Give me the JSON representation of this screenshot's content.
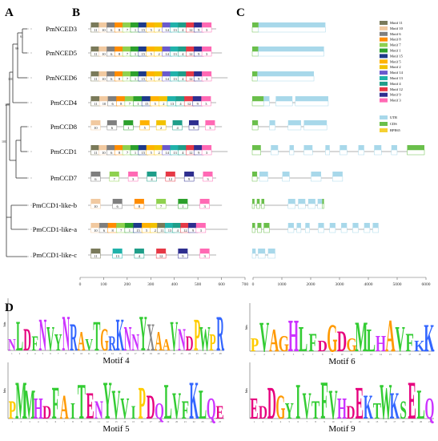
{
  "panels": {
    "A": "A",
    "B": "B",
    "C": "C",
    "D": "D"
  },
  "genes": [
    {
      "name": "PmNCED3",
      "support": "",
      "motifs": [
        11,
        10,
        6,
        8,
        7,
        1,
        15,
        5,
        2,
        14,
        13,
        4,
        12,
        9,
        3
      ],
      "gene_len": 2550,
      "gene": [
        [
          0,
          220,
          "cds"
        ],
        [
          220,
          2550,
          "utr"
        ]
      ]
    },
    {
      "name": "PmNCED5",
      "support": "61",
      "motifs": [
        11,
        10,
        6,
        8,
        7,
        1,
        15,
        5,
        2,
        14,
        13,
        4,
        12,
        9,
        3
      ],
      "gene_len": 2500,
      "gene": [
        [
          0,
          210,
          "cds"
        ],
        [
          210,
          2500,
          "utr"
        ]
      ]
    },
    {
      "name": "PmNCED6",
      "support": "99",
      "motifs": [
        11,
        10,
        6,
        8,
        7,
        1,
        15,
        5,
        2,
        14,
        13,
        4,
        12,
        9,
        3
      ],
      "gene_len": 2150,
      "gene": [
        [
          0,
          180,
          "cds"
        ],
        [
          180,
          2150,
          "utr"
        ]
      ]
    },
    {
      "name": "PmCCD4",
      "support": "100",
      "motifs": [
        11,
        10,
        6,
        8,
        7,
        1,
        15,
        5,
        2,
        13,
        4,
        12,
        9,
        3
      ],
      "gene_len": 2650,
      "gene": [
        [
          0,
          400,
          "cds"
        ],
        [
          400,
          600,
          "utr"
        ],
        [
          820,
          1400,
          "utr"
        ],
        [
          1500,
          2650,
          "utr"
        ]
      ]
    },
    {
      "name": "PmCCD8",
      "support": "100",
      "motifs": [
        10,
        6,
        1,
        5,
        2,
        4,
        9,
        3
      ],
      "gene_len": 2600,
      "gene": [
        [
          0,
          200,
          "cds"
        ],
        [
          600,
          800,
          "utr"
        ],
        [
          1250,
          1700,
          "utr"
        ],
        [
          1800,
          2600,
          "utr"
        ]
      ]
    },
    {
      "name": "PmCCD1",
      "support": "100",
      "motifs": [
        11,
        10,
        6,
        8,
        7,
        1,
        15,
        5,
        2,
        14,
        13,
        4,
        12,
        9,
        3
      ],
      "gene_len": 6000,
      "gene": [
        [
          0,
          300,
          "cds"
        ],
        [
          650,
          900,
          "utr"
        ],
        [
          1300,
          1450,
          "utr"
        ],
        [
          1800,
          2100,
          "utr"
        ],
        [
          2550,
          2700,
          "utr"
        ],
        [
          3050,
          3300,
          "utr"
        ],
        [
          3700,
          3900,
          "utr"
        ],
        [
          4250,
          4500,
          "utr"
        ],
        [
          4850,
          5050,
          "utr"
        ],
        [
          5400,
          6000,
          "cds"
        ]
      ]
    },
    {
      "name": "PmCCD7",
      "support": "",
      "motifs": [
        6,
        7,
        3,
        4,
        12,
        9,
        3
      ],
      "gene_len": 3150,
      "gene": [
        [
          0,
          170,
          "cds"
        ],
        [
          250,
          550,
          "utr"
        ],
        [
          1050,
          1300,
          "utr"
        ],
        [
          2050,
          2400,
          "utr"
        ],
        [
          2800,
          3150,
          "utr"
        ]
      ]
    },
    {
      "name": "PmCCD1-like-b",
      "support": "",
      "motifs": [
        10,
        6,
        8,
        7,
        1,
        3
      ],
      "gene_len": 2500,
      "gene": [
        [
          0,
          80,
          "cds"
        ],
        [
          160,
          260,
          "cds"
        ],
        [
          320,
          420,
          "cds"
        ],
        [
          1250,
          1500,
          "utr"
        ],
        [
          1600,
          1850,
          "utr"
        ],
        [
          1950,
          2200,
          "utr"
        ],
        [
          2280,
          2440,
          "utr"
        ],
        [
          2440,
          2500,
          "cds"
        ]
      ]
    },
    {
      "name": "PmCCD1-like-a",
      "support": "",
      "motifs": [
        10,
        6,
        8,
        7,
        1,
        15,
        5,
        2,
        11,
        13,
        4,
        12,
        9,
        3
      ],
      "gene_len": 4400,
      "gene": [
        [
          0,
          100,
          "cds"
        ],
        [
          180,
          320,
          "cds"
        ],
        [
          400,
          600,
          "cds"
        ],
        [
          1250,
          1450,
          "utr"
        ],
        [
          1550,
          1700,
          "utr"
        ],
        [
          1850,
          2000,
          "utr"
        ],
        [
          2300,
          2500,
          "utr"
        ],
        [
          2700,
          2900,
          "utr"
        ],
        [
          3100,
          3300,
          "utr"
        ],
        [
          3500,
          3700,
          "utr"
        ],
        [
          3900,
          4100,
          "utr"
        ],
        [
          4200,
          4400,
          "utr"
        ]
      ]
    },
    {
      "name": "PmCCD1-like-c",
      "support": "",
      "motifs": [
        11,
        13,
        4,
        12,
        9,
        3
      ],
      "gene_len": 800,
      "gene": [
        [
          0,
          120,
          "utr"
        ],
        [
          200,
          450,
          "utr"
        ],
        [
          550,
          800,
          "utr"
        ]
      ]
    }
  ],
  "motif_legend": [
    "Motif 11",
    "Motif 10",
    "Motif 6",
    "Motif 8",
    "Motif 7",
    "Motif 1",
    "Motif 15",
    "Motif 5",
    "Motif 2",
    "Motif 14",
    "Motif 13",
    "Motif 4",
    "Motif 12",
    "Motif 9",
    "Motif 3"
  ],
  "structure_legend": [
    "UTR",
    "CDS",
    "RPE65"
  ],
  "motif_colors": {
    "1": "#2ca02c",
    "2": "#f2c200",
    "3": "#ff69b4",
    "4": "#1f9e89",
    "5": "#ffb300",
    "6": "#7f7f7f",
    "7": "#8fd14f",
    "8": "#ff8c00",
    "9": "#2e2e8f",
    "10": "#f1c9a0",
    "11": "#7a7a5a",
    "12": "#e63946",
    "13": "#20b2aa",
    "14": "#6a5acd",
    "15": "#1e3a8a"
  },
  "colors": {
    "utr": "#a8d8ea",
    "cds": "#6abf4b",
    "rpe65": "#f5d033"
  },
  "motif_axis": {
    "ticks": [
      "0",
      "100",
      "200",
      "300",
      "400",
      "500",
      "600",
      "700"
    ],
    "max": 700
  },
  "gene_axis": {
    "ticks": [
      "0",
      "1000",
      "2000",
      "3000",
      "4000",
      "5000",
      "6000"
    ],
    "max": 6000
  },
  "logos": [
    {
      "title": "Motif 4",
      "seq": "NLDFNVYNRAVTGRKNNYXAAVNDPWPR"
    },
    {
      "title": "Motif 6",
      "seq": "PVAGHLFDGDGMLHAVFKK"
    },
    {
      "title": "Motif 5",
      "seq": "PMMHDFAITENYVVIPDQLVFKLQE"
    },
    {
      "title": "Motif 9",
      "seq": "EDDGYIVTFVHDEKTWKSELQ"
    }
  ],
  "logo_ylabel": "bits"
}
